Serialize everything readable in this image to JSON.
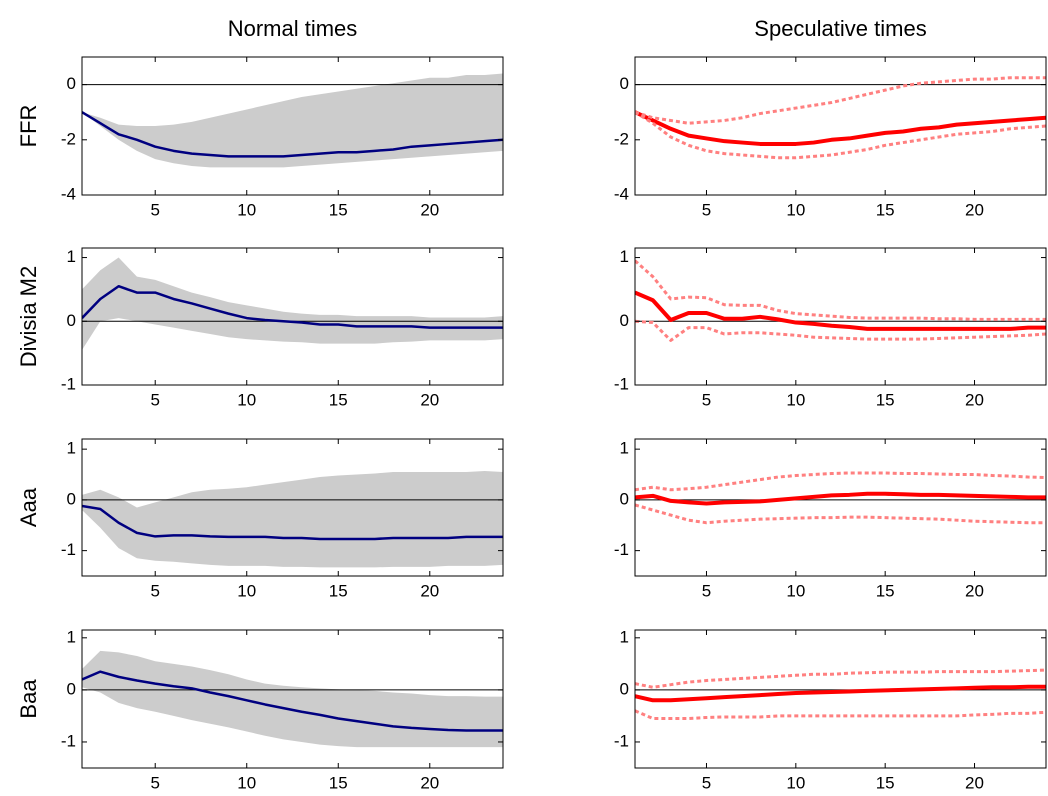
{
  "chart_data": [
    {
      "type": "line",
      "title": "Normal times",
      "ylabel": "FFR",
      "x": [
        1,
        2,
        3,
        4,
        5,
        6,
        7,
        8,
        9,
        10,
        11,
        12,
        13,
        14,
        15,
        16,
        17,
        18,
        19,
        20,
        21,
        22,
        23,
        24
      ],
      "xlim": [
        1,
        24
      ],
      "xticks": [
        5,
        10,
        15,
        20
      ],
      "ylim": [
        -4,
        1
      ],
      "yticks": [
        -4,
        -2,
        0
      ],
      "hline": 0,
      "band": {
        "color": "#cccccc",
        "lower": [
          -1,
          -1.5,
          -2.0,
          -2.4,
          -2.7,
          -2.85,
          -2.95,
          -3.0,
          -3.0,
          -3.0,
          -3.0,
          -3.0,
          -2.95,
          -2.9,
          -2.85,
          -2.8,
          -2.75,
          -2.7,
          -2.65,
          -2.6,
          -2.55,
          -2.5,
          -2.45,
          -2.4
        ],
        "upper": [
          -1,
          -1.2,
          -1.45,
          -1.5,
          -1.5,
          -1.45,
          -1.35,
          -1.2,
          -1.05,
          -0.9,
          -0.75,
          -0.6,
          -0.45,
          -0.35,
          -0.25,
          -0.15,
          -0.05,
          0.05,
          0.15,
          0.25,
          0.25,
          0.35,
          0.35,
          0.4
        ]
      },
      "series": [
        {
          "color": "#000080",
          "width": 2.5,
          "values": [
            -1,
            -1.4,
            -1.8,
            -2.0,
            -2.25,
            -2.4,
            -2.5,
            -2.55,
            -2.6,
            -2.6,
            -2.6,
            -2.6,
            -2.55,
            -2.5,
            -2.45,
            -2.45,
            -2.4,
            -2.35,
            -2.25,
            -2.2,
            -2.15,
            -2.1,
            -2.05,
            -2.0
          ]
        }
      ]
    },
    {
      "type": "line",
      "title": "Speculative times",
      "x": [
        1,
        2,
        3,
        4,
        5,
        6,
        7,
        8,
        9,
        10,
        11,
        12,
        13,
        14,
        15,
        16,
        17,
        18,
        19,
        20,
        21,
        22,
        23,
        24
      ],
      "xlim": [
        1,
        24
      ],
      "xticks": [
        5,
        10,
        15,
        20
      ],
      "ylim": [
        -4,
        1
      ],
      "yticks": [
        -4,
        -2,
        0
      ],
      "hline": 0,
      "series": [
        {
          "color": "#ff0000",
          "width": 4,
          "values": [
            -1,
            -1.3,
            -1.6,
            -1.85,
            -1.95,
            -2.05,
            -2.1,
            -2.15,
            -2.15,
            -2.15,
            -2.1,
            -2.0,
            -1.95,
            -1.85,
            -1.75,
            -1.7,
            -1.6,
            -1.55,
            -1.45,
            -1.4,
            -1.35,
            -1.3,
            -1.25,
            -1.2
          ]
        },
        {
          "color": "#ff8080",
          "width": 3,
          "dashed": true,
          "values": [
            -1,
            -1.4,
            -1.9,
            -2.2,
            -2.4,
            -2.5,
            -2.55,
            -2.6,
            -2.65,
            -2.65,
            -2.6,
            -2.55,
            -2.45,
            -2.35,
            -2.2,
            -2.1,
            -2.0,
            -1.9,
            -1.8,
            -1.75,
            -1.7,
            -1.6,
            -1.55,
            -1.5
          ]
        },
        {
          "color": "#ff8080",
          "width": 3,
          "dashed": true,
          "values": [
            -1,
            -1.2,
            -1.3,
            -1.4,
            -1.35,
            -1.3,
            -1.2,
            -1.05,
            -0.95,
            -0.85,
            -0.75,
            -0.65,
            -0.5,
            -0.35,
            -0.2,
            -0.05,
            0.05,
            0.1,
            0.15,
            0.2,
            0.2,
            0.25,
            0.25,
            0.25
          ]
        }
      ]
    },
    {
      "type": "line",
      "ylabel": "Divisia M2",
      "x": [
        1,
        2,
        3,
        4,
        5,
        6,
        7,
        8,
        9,
        10,
        11,
        12,
        13,
        14,
        15,
        16,
        17,
        18,
        19,
        20,
        21,
        22,
        23,
        24
      ],
      "xlim": [
        1,
        24
      ],
      "xticks": [
        5,
        10,
        15,
        20
      ],
      "ylim": [
        -1,
        1.15
      ],
      "yticks": [
        -1,
        0,
        1
      ],
      "hline": 0,
      "band": {
        "color": "#cccccc",
        "lower": [
          -0.45,
          0,
          0.05,
          0,
          -0.05,
          -0.1,
          -0.15,
          -0.2,
          -0.25,
          -0.28,
          -0.3,
          -0.32,
          -0.33,
          -0.35,
          -0.35,
          -0.35,
          -0.35,
          -0.33,
          -0.32,
          -0.3,
          -0.3,
          -0.3,
          -0.3,
          -0.28
        ],
        "upper": [
          0.5,
          0.8,
          1.0,
          0.7,
          0.65,
          0.55,
          0.45,
          0.38,
          0.3,
          0.25,
          0.2,
          0.15,
          0.12,
          0.1,
          0.1,
          0.08,
          0.08,
          0.08,
          0.08,
          0.06,
          0.06,
          0.06,
          0.06,
          0.08
        ]
      },
      "series": [
        {
          "color": "#000080",
          "width": 2.5,
          "values": [
            0.05,
            0.35,
            0.55,
            0.45,
            0.45,
            0.35,
            0.28,
            0.2,
            0.12,
            0.05,
            0.02,
            0,
            -0.02,
            -0.05,
            -0.05,
            -0.08,
            -0.08,
            -0.08,
            -0.08,
            -0.1,
            -0.1,
            -0.1,
            -0.1,
            -0.1
          ]
        }
      ]
    },
    {
      "type": "line",
      "x": [
        1,
        2,
        3,
        4,
        5,
        6,
        7,
        8,
        9,
        10,
        11,
        12,
        13,
        14,
        15,
        16,
        17,
        18,
        19,
        20,
        21,
        22,
        23,
        24
      ],
      "xlim": [
        1,
        24
      ],
      "xticks": [
        5,
        10,
        15,
        20
      ],
      "ylim": [
        -1,
        1.15
      ],
      "yticks": [
        -1,
        0,
        1
      ],
      "hline": 0,
      "series": [
        {
          "color": "#ff0000",
          "width": 4,
          "values": [
            0.45,
            0.33,
            0.02,
            0.13,
            0.13,
            0.04,
            0.04,
            0.07,
            0.03,
            -0.02,
            -0.04,
            -0.07,
            -0.09,
            -0.12,
            -0.12,
            -0.12,
            -0.12,
            -0.12,
            -0.12,
            -0.12,
            -0.12,
            -0.12,
            -0.1,
            -0.1
          ]
        },
        {
          "color": "#ff8080",
          "width": 3,
          "dashed": true,
          "values": [
            0,
            -0.02,
            -0.3,
            -0.1,
            -0.1,
            -0.2,
            -0.18,
            -0.18,
            -0.2,
            -0.22,
            -0.25,
            -0.26,
            -0.27,
            -0.28,
            -0.28,
            -0.28,
            -0.28,
            -0.27,
            -0.26,
            -0.25,
            -0.24,
            -0.23,
            -0.22,
            -0.2
          ]
        },
        {
          "color": "#ff8080",
          "width": 3,
          "dashed": true,
          "values": [
            0.95,
            0.7,
            0.35,
            0.38,
            0.37,
            0.26,
            0.25,
            0.25,
            0.17,
            0.12,
            0.1,
            0.08,
            0.06,
            0.05,
            0.05,
            0.05,
            0.05,
            0.04,
            0.04,
            0.03,
            0.03,
            0.03,
            0.03,
            0.03
          ]
        }
      ]
    },
    {
      "type": "line",
      "ylabel": "Aaa",
      "x": [
        1,
        2,
        3,
        4,
        5,
        6,
        7,
        8,
        9,
        10,
        11,
        12,
        13,
        14,
        15,
        16,
        17,
        18,
        19,
        20,
        21,
        22,
        23,
        24
      ],
      "xlim": [
        1,
        24
      ],
      "xticks": [
        5,
        10,
        15,
        20
      ],
      "ylim": [
        -1.5,
        1.2
      ],
      "yticks": [
        -1,
        0,
        1
      ],
      "hline": 0,
      "band": {
        "color": "#cccccc",
        "lower": [
          -0.2,
          -0.55,
          -0.95,
          -1.15,
          -1.2,
          -1.22,
          -1.25,
          -1.28,
          -1.3,
          -1.3,
          -1.3,
          -1.32,
          -1.32,
          -1.33,
          -1.33,
          -1.33,
          -1.33,
          -1.32,
          -1.32,
          -1.32,
          -1.3,
          -1.3,
          -1.3,
          -1.28
        ],
        "upper": [
          0.1,
          0.2,
          0.05,
          -0.15,
          -0.05,
          0.05,
          0.15,
          0.2,
          0.22,
          0.25,
          0.3,
          0.35,
          0.4,
          0.45,
          0.48,
          0.5,
          0.52,
          0.55,
          0.55,
          0.55,
          0.55,
          0.55,
          0.57,
          0.55
        ]
      },
      "series": [
        {
          "color": "#000080",
          "width": 2.5,
          "values": [
            -0.12,
            -0.18,
            -0.45,
            -0.65,
            -0.72,
            -0.7,
            -0.7,
            -0.72,
            -0.73,
            -0.73,
            -0.73,
            -0.75,
            -0.75,
            -0.77,
            -0.77,
            -0.77,
            -0.77,
            -0.75,
            -0.75,
            -0.75,
            -0.75,
            -0.73,
            -0.73,
            -0.73
          ]
        }
      ]
    },
    {
      "type": "line",
      "x": [
        1,
        2,
        3,
        4,
        5,
        6,
        7,
        8,
        9,
        10,
        11,
        12,
        13,
        14,
        15,
        16,
        17,
        18,
        19,
        20,
        21,
        22,
        23,
        24
      ],
      "xlim": [
        1,
        24
      ],
      "xticks": [
        5,
        10,
        15,
        20
      ],
      "ylim": [
        -1.5,
        1.2
      ],
      "yticks": [
        -1,
        0,
        1
      ],
      "hline": 0,
      "series": [
        {
          "color": "#ff0000",
          "width": 4,
          "values": [
            0.05,
            0.08,
            -0.02,
            -0.05,
            -0.07,
            -0.05,
            -0.04,
            -0.03,
            0,
            0.03,
            0.06,
            0.09,
            0.1,
            0.12,
            0.12,
            0.11,
            0.1,
            0.1,
            0.09,
            0.08,
            0.07,
            0.06,
            0.05,
            0.05
          ]
        },
        {
          "color": "#ff8080",
          "width": 3,
          "dashed": true,
          "values": [
            -0.1,
            -0.2,
            -0.3,
            -0.4,
            -0.45,
            -0.42,
            -0.4,
            -0.38,
            -0.37,
            -0.36,
            -0.35,
            -0.35,
            -0.34,
            -0.34,
            -0.35,
            -0.36,
            -0.37,
            -0.38,
            -0.4,
            -0.42,
            -0.43,
            -0.44,
            -0.45,
            -0.45
          ]
        },
        {
          "color": "#ff8080",
          "width": 3,
          "dashed": true,
          "values": [
            0.2,
            0.25,
            0.2,
            0.22,
            0.25,
            0.3,
            0.35,
            0.4,
            0.45,
            0.48,
            0.5,
            0.52,
            0.53,
            0.53,
            0.53,
            0.52,
            0.52,
            0.51,
            0.5,
            0.5,
            0.48,
            0.47,
            0.45,
            0.44
          ]
        }
      ]
    },
    {
      "type": "line",
      "ylabel": "Baa",
      "x": [
        1,
        2,
        3,
        4,
        5,
        6,
        7,
        8,
        9,
        10,
        11,
        12,
        13,
        14,
        15,
        16,
        17,
        18,
        19,
        20,
        21,
        22,
        23,
        24
      ],
      "xlim": [
        1,
        24
      ],
      "xticks": [
        5,
        10,
        15,
        20
      ],
      "ylim": [
        -1.5,
        1.15
      ],
      "yticks": [
        -1,
        0,
        1
      ],
      "hline": 0,
      "band": {
        "color": "#cccccc",
        "lower": [
          0.05,
          -0.05,
          -0.25,
          -0.35,
          -0.42,
          -0.5,
          -0.58,
          -0.65,
          -0.72,
          -0.8,
          -0.88,
          -0.95,
          -1.0,
          -1.05,
          -1.08,
          -1.1,
          -1.1,
          -1.1,
          -1.1,
          -1.1,
          -1.1,
          -1.1,
          -1.1,
          -1.1
        ],
        "upper": [
          0.4,
          0.75,
          0.72,
          0.65,
          0.55,
          0.5,
          0.45,
          0.38,
          0.3,
          0.2,
          0.12,
          0.08,
          0.05,
          0.03,
          0.01,
          0,
          -0.02,
          -0.05,
          -0.07,
          -0.1,
          -0.12,
          -0.12,
          -0.13,
          -0.13
        ]
      },
      "series": [
        {
          "color": "#000080",
          "width": 2.5,
          "values": [
            0.2,
            0.35,
            0.25,
            0.18,
            0.12,
            0.07,
            0.03,
            -0.05,
            -0.12,
            -0.2,
            -0.28,
            -0.35,
            -0.42,
            -0.48,
            -0.55,
            -0.6,
            -0.65,
            -0.7,
            -0.73,
            -0.75,
            -0.77,
            -0.78,
            -0.78,
            -0.78
          ]
        }
      ]
    },
    {
      "type": "line",
      "x": [
        1,
        2,
        3,
        4,
        5,
        6,
        7,
        8,
        9,
        10,
        11,
        12,
        13,
        14,
        15,
        16,
        17,
        18,
        19,
        20,
        21,
        22,
        23,
        24
      ],
      "xlim": [
        1,
        24
      ],
      "xticks": [
        5,
        10,
        15,
        20
      ],
      "ylim": [
        -1.5,
        1.15
      ],
      "yticks": [
        -1,
        0,
        1
      ],
      "hline": 0,
      "series": [
        {
          "color": "#ff0000",
          "width": 4,
          "values": [
            -0.12,
            -0.2,
            -0.2,
            -0.18,
            -0.16,
            -0.14,
            -0.12,
            -0.1,
            -0.08,
            -0.06,
            -0.05,
            -0.04,
            -0.03,
            -0.02,
            -0.01,
            0,
            0.01,
            0.02,
            0.03,
            0.04,
            0.05,
            0.05,
            0.06,
            0.06
          ]
        },
        {
          "color": "#ff8080",
          "width": 3,
          "dashed": true,
          "values": [
            -0.4,
            -0.55,
            -0.55,
            -0.55,
            -0.53,
            -0.52,
            -0.52,
            -0.52,
            -0.5,
            -0.5,
            -0.5,
            -0.5,
            -0.5,
            -0.5,
            -0.5,
            -0.5,
            -0.5,
            -0.5,
            -0.5,
            -0.48,
            -0.47,
            -0.45,
            -0.45,
            -0.43
          ]
        },
        {
          "color": "#ff8080",
          "width": 3,
          "dashed": true,
          "values": [
            0.12,
            0.05,
            0.1,
            0.15,
            0.18,
            0.2,
            0.22,
            0.24,
            0.26,
            0.28,
            0.3,
            0.3,
            0.32,
            0.33,
            0.34,
            0.34,
            0.34,
            0.35,
            0.35,
            0.35,
            0.35,
            0.36,
            0.37,
            0.38
          ]
        }
      ]
    }
  ]
}
